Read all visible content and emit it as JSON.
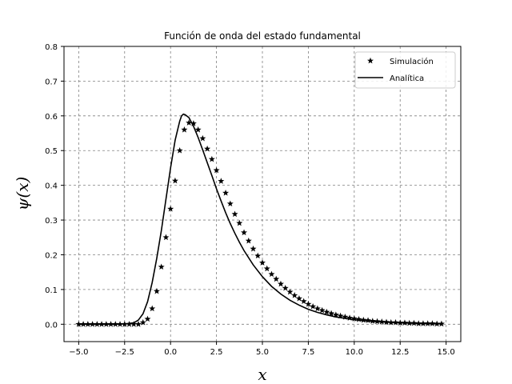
{
  "chart_data": {
    "type": "line",
    "title": "Función de onda del estado fundamental",
    "xlabel": "x",
    "ylabel": "ψ(x)",
    "xlim": [
      -5.8,
      15.8
    ],
    "ylim": [
      -0.05,
      0.8
    ],
    "xticks": [
      -5.0,
      -2.5,
      0.0,
      2.5,
      5.0,
      7.5,
      10.0,
      12.5,
      15.0
    ],
    "xtick_labels": [
      "−5.0",
      "−2.5",
      "0.0",
      "2.5",
      "5.0",
      "7.5",
      "10.0",
      "12.5",
      "15.0"
    ],
    "yticks": [
      0.0,
      0.1,
      0.2,
      0.3,
      0.4,
      0.5,
      0.6,
      0.7,
      0.8
    ],
    "ytick_labels": [
      "0.0",
      "0.1",
      "0.2",
      "0.3",
      "0.4",
      "0.5",
      "0.6",
      "0.7",
      "0.8"
    ],
    "grid": true,
    "legend_position": "top-right",
    "series": [
      {
        "name": "Simulación",
        "style": "star-markers",
        "color": "#000000",
        "x": [
          -5.0,
          -4.75,
          -4.5,
          -4.25,
          -4.0,
          -3.75,
          -3.5,
          -3.25,
          -3.0,
          -2.75,
          -2.5,
          -2.25,
          -2.0,
          -1.75,
          -1.5,
          -1.25,
          -1.0,
          -0.75,
          -0.5,
          -0.25,
          0.0,
          0.25,
          0.5,
          0.75,
          1.0,
          1.25,
          1.5,
          1.75,
          2.0,
          2.25,
          2.5,
          2.75,
          3.0,
          3.25,
          3.5,
          3.75,
          4.0,
          4.25,
          4.5,
          4.75,
          5.0,
          5.25,
          5.5,
          5.75,
          6.0,
          6.25,
          6.5,
          6.75,
          7.0,
          7.25,
          7.5,
          7.75,
          8.0,
          8.25,
          8.5,
          8.75,
          9.0,
          9.25,
          9.5,
          9.75,
          10.0,
          10.25,
          10.5,
          10.75,
          11.0,
          11.25,
          11.5,
          11.75,
          12.0,
          12.25,
          12.5,
          12.75,
          13.0,
          13.25,
          13.5,
          13.75,
          14.0,
          14.25,
          14.5,
          14.75
        ],
        "y": [
          0.0,
          0.0,
          0.0,
          0.0,
          0.0,
          0.0,
          0.0,
          0.0,
          0.0,
          0.0,
          0.0,
          0.0,
          0.0,
          0.0,
          0.005,
          0.015,
          0.045,
          0.095,
          0.165,
          0.25,
          0.332,
          0.413,
          0.5,
          0.56,
          0.58,
          0.578,
          0.56,
          0.535,
          0.505,
          0.475,
          0.443,
          0.412,
          0.378,
          0.347,
          0.317,
          0.291,
          0.264,
          0.24,
          0.217,
          0.197,
          0.177,
          0.16,
          0.144,
          0.13,
          0.116,
          0.104,
          0.093,
          0.083,
          0.074,
          0.066,
          0.058,
          0.051,
          0.045,
          0.04,
          0.035,
          0.031,
          0.027,
          0.024,
          0.021,
          0.018,
          0.016,
          0.014,
          0.012,
          0.011,
          0.009,
          0.008,
          0.007,
          0.006,
          0.005,
          0.005,
          0.004,
          0.004,
          0.003,
          0.003,
          0.002,
          0.002,
          0.002,
          0.002,
          0.001,
          0.001
        ]
      },
      {
        "name": "Analítica",
        "style": "solid-line",
        "color": "#000000",
        "x": [
          -5.0,
          -3.0,
          -2.5,
          -2.0,
          -1.75,
          -1.5,
          -1.25,
          -1.0,
          -0.75,
          -0.5,
          -0.25,
          0.0,
          0.25,
          0.5,
          0.6,
          0.7,
          0.8,
          1.0,
          1.25,
          1.5,
          1.75,
          2.0,
          2.25,
          2.5,
          2.75,
          3.0,
          3.25,
          3.5,
          3.75,
          4.0,
          4.5,
          5.0,
          5.5,
          6.0,
          6.5,
          7.0,
          7.5,
          8.0,
          8.5,
          9.0,
          9.5,
          10.0,
          11.0,
          12.0,
          13.0,
          14.0,
          14.8
        ],
        "y": [
          0.0,
          0.0,
          0.001,
          0.004,
          0.012,
          0.03,
          0.065,
          0.12,
          0.19,
          0.27,
          0.36,
          0.45,
          0.53,
          0.585,
          0.6,
          0.605,
          0.603,
          0.595,
          0.57,
          0.538,
          0.502,
          0.465,
          0.428,
          0.39,
          0.355,
          0.321,
          0.29,
          0.262,
          0.236,
          0.212,
          0.171,
          0.137,
          0.109,
          0.087,
          0.069,
          0.055,
          0.043,
          0.034,
          0.027,
          0.021,
          0.017,
          0.013,
          0.008,
          0.005,
          0.003,
          0.002,
          0.001
        ]
      }
    ]
  }
}
